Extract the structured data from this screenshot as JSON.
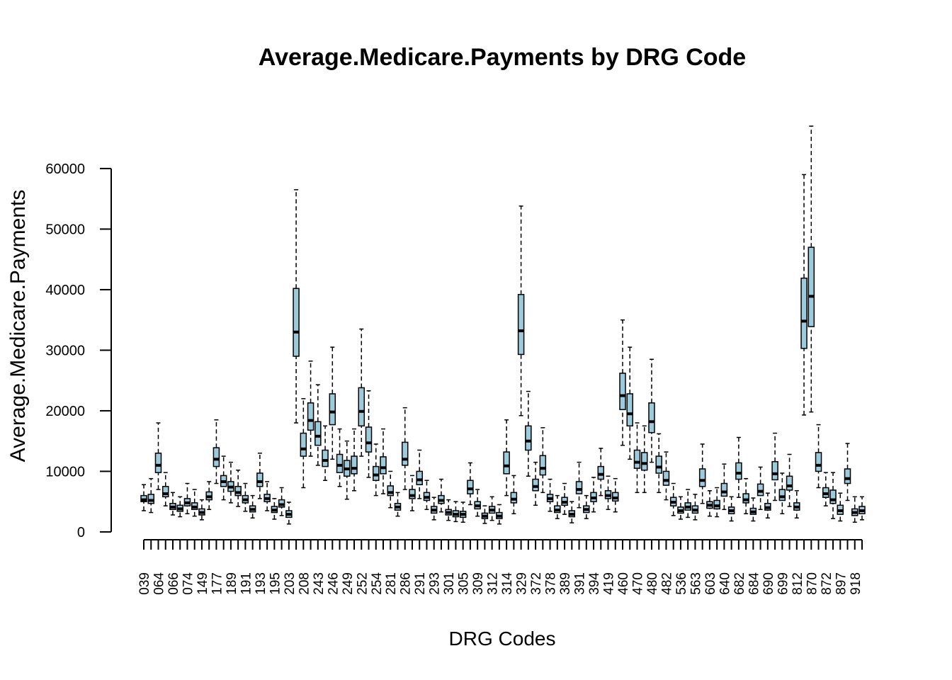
{
  "chart_data": {
    "type": "box",
    "title": "Average.Medicare.Payments by DRG Code",
    "x_label": "DRG Codes",
    "y_label": "Average.Medicare.Payments",
    "color": "#9ccbdc",
    "categories": [
      "039",
      null,
      "064",
      null,
      "066",
      null,
      "074",
      null,
      "149",
      null,
      "177",
      null,
      "189",
      null,
      "191",
      null,
      "193",
      null,
      "195",
      null,
      "203",
      null,
      "208",
      null,
      "243",
      null,
      "246",
      null,
      "249",
      null,
      "252",
      null,
      "254",
      null,
      "281",
      null,
      "286",
      null,
      "291",
      null,
      "293",
      null,
      "301",
      null,
      "305",
      null,
      "309",
      null,
      "312",
      null,
      "314",
      null,
      "329",
      null,
      "372",
      null,
      "378",
      null,
      "389",
      null,
      "391",
      null,
      "394",
      null,
      "419",
      null,
      "460",
      null,
      "470",
      null,
      "480",
      null,
      "482",
      null,
      "536",
      null,
      "563",
      null,
      "603",
      null,
      "640",
      null,
      "682",
      null,
      "684",
      null,
      "690",
      null,
      "699",
      null,
      "812",
      null,
      "870",
      null,
      "872",
      null,
      "897",
      null,
      "918",
      null
    ],
    "boxes": [
      [
        3500,
        5000,
        5300,
        6000,
        7800
      ],
      [
        3200,
        4700,
        5200,
        6200,
        8800
      ],
      [
        7000,
        9800,
        11000,
        13000,
        18000
      ],
      [
        4300,
        5800,
        6300,
        7500,
        9800
      ],
      [
        2800,
        3700,
        4100,
        4700,
        6500
      ],
      [
        2500,
        3400,
        3800,
        4400,
        5800
      ],
      [
        3000,
        4300,
        4800,
        5500,
        8000
      ],
      [
        2600,
        3700,
        4100,
        4800,
        7000
      ],
      [
        2000,
        2800,
        3200,
        3800,
        5300
      ],
      [
        3700,
        5300,
        5800,
        6600,
        8300
      ],
      [
        8000,
        10800,
        12000,
        13900,
        18500
      ],
      [
        5300,
        7500,
        8300,
        9300,
        12500
      ],
      [
        4800,
        6700,
        7400,
        8300,
        11500
      ],
      [
        4200,
        6000,
        6500,
        7500,
        10200
      ],
      [
        3400,
        4800,
        5300,
        6000,
        8000
      ],
      [
        2300,
        3300,
        3700,
        4300,
        6000
      ],
      [
        5500,
        7500,
        8300,
        9700,
        13000
      ],
      [
        3500,
        5000,
        5500,
        6200,
        8300
      ],
      [
        2100,
        3200,
        3600,
        4200,
        5500
      ],
      [
        2700,
        4100,
        4500,
        5300,
        7300
      ],
      [
        1300,
        2400,
        2900,
        3500,
        4900
      ],
      [
        18000,
        29000,
        33000,
        40200,
        56500
      ],
      [
        7300,
        12500,
        13700,
        16300,
        22000
      ],
      [
        12500,
        16800,
        18400,
        21300,
        28200
      ],
      [
        11000,
        14300,
        15800,
        18200,
        24300
      ],
      [
        8500,
        10800,
        11800,
        13500,
        17500
      ],
      [
        12000,
        17700,
        19800,
        22800,
        30500
      ],
      [
        7500,
        9800,
        11000,
        12800,
        17000
      ],
      [
        5400,
        9200,
        10400,
        11800,
        15000
      ],
      [
        6800,
        9600,
        10500,
        12500,
        17000
      ],
      [
        12500,
        17500,
        19900,
        23800,
        33500
      ],
      [
        9000,
        13200,
        14700,
        17300,
        23300
      ],
      [
        6000,
        8500,
        9400,
        10800,
        14500
      ],
      [
        6300,
        9600,
        10600,
        12400,
        17000
      ],
      [
        4000,
        6000,
        6500,
        7600,
        10000
      ],
      [
        2600,
        3600,
        4100,
        4700,
        6500
      ],
      [
        7000,
        11000,
        12000,
        14800,
        20500
      ],
      [
        3500,
        5500,
        6000,
        7000,
        9300
      ],
      [
        5500,
        7800,
        8600,
        10000,
        13500
      ],
      [
        3700,
        5200,
        5700,
        6500,
        8500
      ],
      [
        2000,
        3100,
        3600,
        4200,
        5700
      ],
      [
        3300,
        4700,
        5200,
        6000,
        8700
      ],
      [
        1900,
        2800,
        3200,
        3700,
        5300
      ],
      [
        1700,
        2500,
        2900,
        3500,
        5000
      ],
      [
        1600,
        2400,
        2900,
        3400,
        4900
      ],
      [
        4500,
        6300,
        7100,
        8500,
        11400
      ],
      [
        2600,
        3800,
        4300,
        5000,
        7000
      ],
      [
        1400,
        2200,
        2600,
        3100,
        4300
      ],
      [
        1900,
        3100,
        3600,
        4200,
        5800
      ],
      [
        1300,
        2200,
        2600,
        3200,
        4500
      ],
      [
        6000,
        9600,
        10900,
        13200,
        18500
      ],
      [
        3000,
        4800,
        5400,
        6500,
        9300
      ],
      [
        19200,
        29300,
        33200,
        39200,
        53800
      ],
      [
        9200,
        13500,
        15000,
        17500,
        23200
      ],
      [
        4400,
        6800,
        7500,
        8700,
        11500
      ],
      [
        6500,
        9400,
        10500,
        12600,
        17200
      ],
      [
        3400,
        5000,
        5500,
        6200,
        8700
      ],
      [
        2200,
        3200,
        3600,
        4300,
        6000
      ],
      [
        2900,
        4400,
        4900,
        5700,
        8000
      ],
      [
        1500,
        2500,
        2900,
        3500,
        5000
      ],
      [
        4000,
        6300,
        7000,
        8300,
        11500
      ],
      [
        2200,
        3200,
        3700,
        4300,
        6000
      ],
      [
        3300,
        5000,
        5600,
        6500,
        9000
      ],
      [
        6000,
        8700,
        9500,
        10800,
        13800
      ],
      [
        3700,
        5500,
        6000,
        6800,
        9200
      ],
      [
        3300,
        5100,
        5600,
        6500,
        8800
      ],
      [
        14300,
        20200,
        22500,
        26200,
        35000
      ],
      [
        12000,
        17500,
        19500,
        22800,
        30500
      ],
      [
        6500,
        10500,
        11500,
        13500,
        18000
      ],
      [
        6500,
        10200,
        11300,
        13100,
        17500
      ],
      [
        11500,
        16400,
        18200,
        21300,
        28500
      ],
      [
        6500,
        9700,
        10700,
        12500,
        16200
      ],
      [
        5300,
        7700,
        8500,
        10000,
        13200
      ],
      [
        2700,
        4300,
        4900,
        5700,
        8000
      ],
      [
        2100,
        3100,
        3500,
        4100,
        5800
      ],
      [
        2400,
        3600,
        4100,
        4800,
        7000
      ],
      [
        2000,
        3100,
        3600,
        4300,
        6200
      ],
      [
        4700,
        7500,
        8500,
        10400,
        14500
      ],
      [
        2600,
        3900,
        4400,
        5000,
        6800
      ],
      [
        2500,
        3800,
        4300,
        5200,
        7300
      ],
      [
        3700,
        5900,
        6600,
        8000,
        11200
      ],
      [
        1800,
        3000,
        3500,
        4100,
        5800
      ],
      [
        5700,
        8700,
        9700,
        11400,
        15600
      ],
      [
        3000,
        4800,
        5300,
        6300,
        8800
      ],
      [
        1800,
        2900,
        3300,
        3900,
        5600
      ],
      [
        3700,
        6000,
        6700,
        7900,
        10700
      ],
      [
        2300,
        3600,
        4000,
        4700,
        6400
      ],
      [
        5200,
        8600,
        9600,
        11600,
        16300
      ],
      [
        3000,
        5200,
        5800,
        7000,
        9700
      ],
      [
        4200,
        6900,
        7600,
        9200,
        12800
      ],
      [
        2300,
        3600,
        4100,
        4800,
        6800
      ],
      [
        19300,
        30300,
        34800,
        41900,
        59000
      ],
      [
        19800,
        33900,
        38900,
        47000,
        67000
      ],
      [
        7300,
        10000,
        11000,
        13100,
        17700
      ],
      [
        4300,
        5700,
        6300,
        7300,
        9800
      ],
      [
        2200,
        4700,
        5300,
        6900,
        9800
      ],
      [
        1800,
        2900,
        3500,
        4400,
        6400
      ],
      [
        5200,
        8000,
        8800,
        10400,
        14600
      ],
      [
        1600,
        2700,
        3200,
        3800,
        5800
      ],
      [
        2000,
        3000,
        3500,
        4200,
        5800
      ]
    ],
    "ylim": [
      -2700,
      69700
    ],
    "yticks": [
      0,
      10000,
      20000,
      30000,
      40000,
      50000,
      60000
    ]
  }
}
